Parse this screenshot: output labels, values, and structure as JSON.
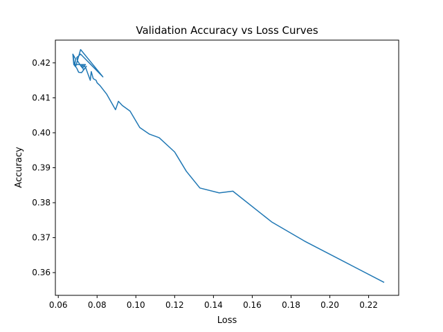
{
  "chart_data": {
    "type": "line",
    "title": "Validation Accuracy vs Loss Curves",
    "xlabel": "Loss",
    "ylabel": "Accuracy",
    "xlim": [
      0.0585,
      0.2355
    ],
    "ylim": [
      0.3535,
      0.4265
    ],
    "xticks": [
      "0.06",
      "0.08",
      "0.10",
      "0.12",
      "0.14",
      "0.16",
      "0.18",
      "0.20",
      "0.22"
    ],
    "yticks": [
      "0.36",
      "0.37",
      "0.38",
      "0.39",
      "0.40",
      "0.41",
      "0.42"
    ],
    "grid": false,
    "legend": "none",
    "series": [
      {
        "color": "#1f77b4",
        "x": [
          0.228,
          0.187,
          0.17,
          0.15,
          0.143,
          0.133,
          0.126,
          0.12,
          0.112,
          0.107,
          0.102,
          0.097,
          0.093,
          0.091,
          0.0895,
          0.085,
          0.0815,
          0.08,
          0.0795,
          0.078,
          0.077,
          0.0765,
          0.0755,
          0.074,
          0.072,
          0.073,
          0.0745,
          0.072,
          0.0705,
          0.0695,
          0.068,
          0.0675,
          0.069,
          0.0685,
          0.074,
          0.0725,
          0.0715,
          0.07,
          0.0695,
          0.0715,
          0.083,
          0.0715,
          0.069,
          0.0682,
          0.0675
        ],
        "y": [
          0.3572,
          0.369,
          0.3745,
          0.3833,
          0.3828,
          0.3842,
          0.389,
          0.3945,
          0.3986,
          0.3996,
          0.4015,
          0.4062,
          0.4078,
          0.409,
          0.4066,
          0.411,
          0.4135,
          0.4143,
          0.415,
          0.4155,
          0.4175,
          0.415,
          0.4165,
          0.4188,
          0.4195,
          0.418,
          0.419,
          0.4172,
          0.4173,
          0.4185,
          0.4195,
          0.4225,
          0.421,
          0.4195,
          0.4195,
          0.4185,
          0.4192,
          0.4205,
          0.4215,
          0.4225,
          0.416,
          0.4238,
          0.419,
          0.42,
          0.4225
        ]
      }
    ]
  }
}
